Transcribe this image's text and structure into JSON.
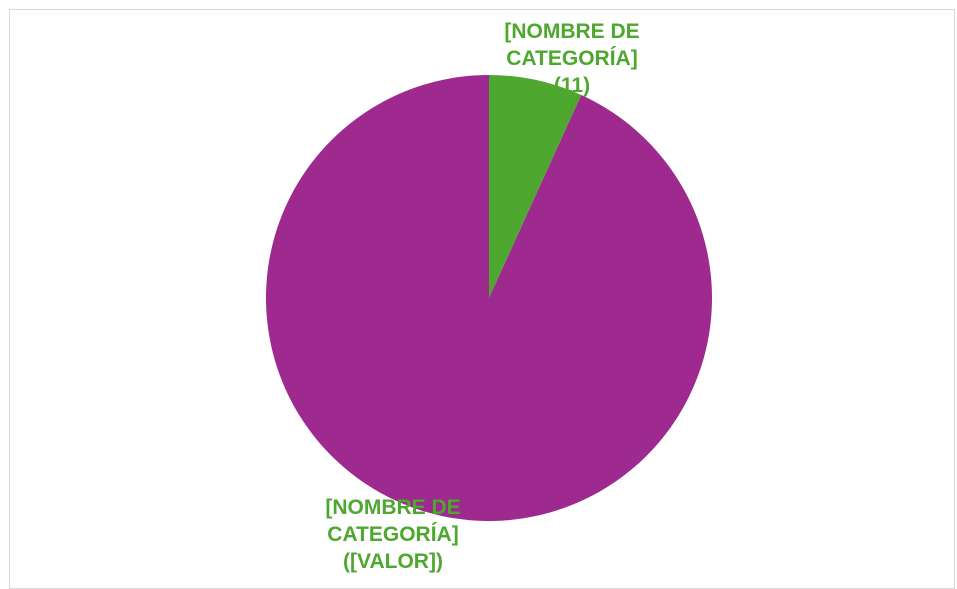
{
  "chart_data": {
    "type": "pie",
    "categories": [
      "[NOMBRE DE CATEGORÍA]",
      "[NOMBRE DE CATEGORÍA]"
    ],
    "values": [
      11,
      151
    ],
    "value_labels": [
      "(11)",
      "([VALOR])"
    ],
    "colors": [
      "#4ea72e",
      "#9e2a8f"
    ],
    "label_color": "#4ea72e"
  }
}
